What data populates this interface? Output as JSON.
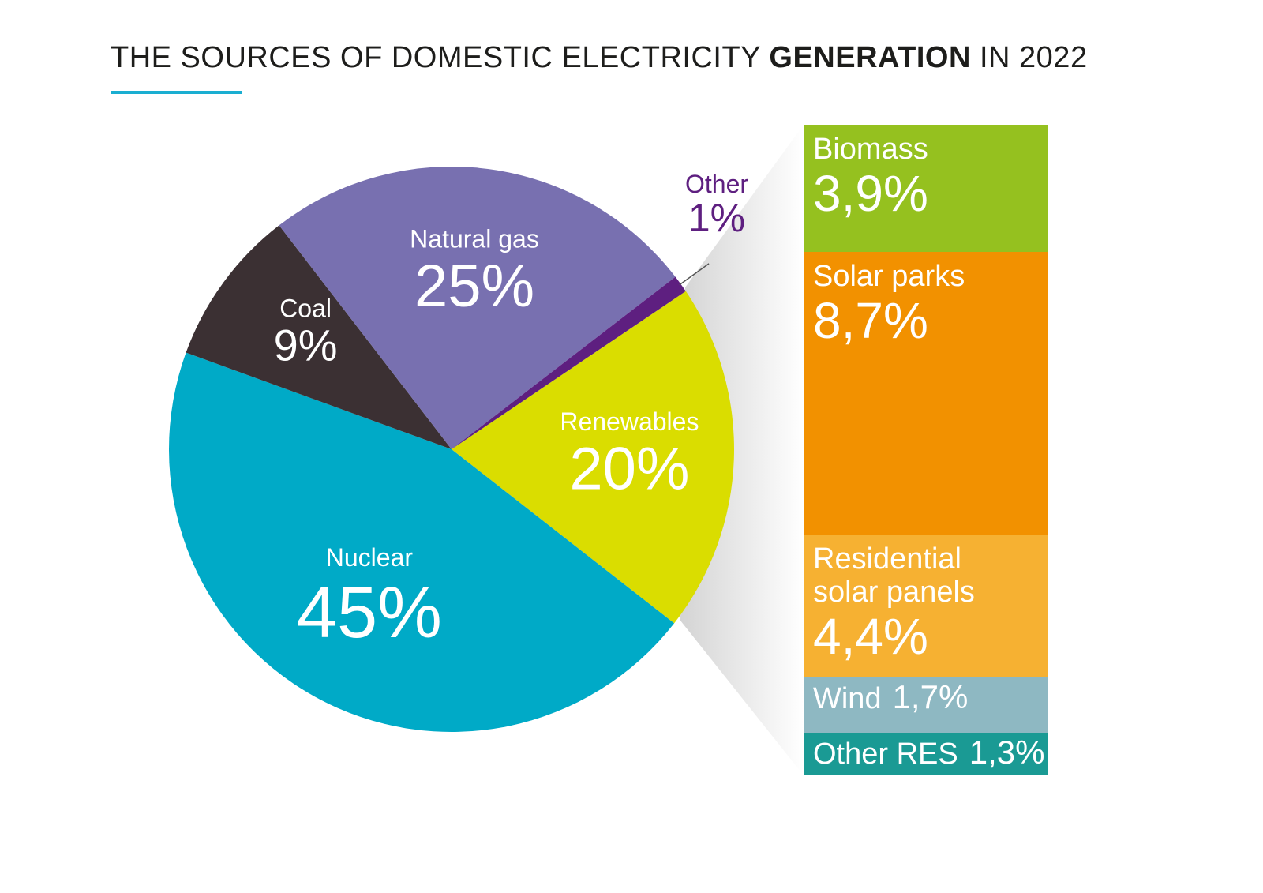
{
  "title": {
    "prefix": "THE SOURCES OF DOMESTIC ELECTRICITY ",
    "bold": "GENERATION",
    "suffix": " IN 2022",
    "underline_color": "#1aaed1"
  },
  "chart_data": [
    {
      "type": "pie",
      "unit": "%",
      "slices": [
        {
          "label": "Renewables",
          "value": 20,
          "value_label": "20%",
          "color": "#dadd00",
          "text_color": "#ffffff"
        },
        {
          "label": "Nuclear",
          "value": 45,
          "value_label": "45%",
          "color": "#00aac7",
          "text_color": "#ffffff"
        },
        {
          "label": "Coal",
          "value": 9,
          "value_label": "9%",
          "color": "#3b3033",
          "text_color": "#ffffff"
        },
        {
          "label": "Natural gas",
          "value": 25,
          "value_label": "25%",
          "color": "#7870b0",
          "text_color": "#ffffff"
        },
        {
          "label": "Other",
          "value": 1,
          "value_label": "1%",
          "color": "#5e1f80",
          "text_color": "#5e1f80"
        }
      ]
    },
    {
      "type": "bar",
      "stacked": true,
      "breakdown_of": "Renewables",
      "unit": "%",
      "segments": [
        {
          "label": "Biomass",
          "value": 3.9,
          "value_label": "3,9%",
          "color": "#95c11f"
        },
        {
          "label": "Solar parks",
          "value": 8.7,
          "value_label": "8,7%",
          "color": "#f29100"
        },
        {
          "label": "Residential solar panels",
          "value": 4.4,
          "value_label": "4,4%",
          "color": "#f6b132"
        },
        {
          "label": "Wind",
          "value": 1.7,
          "value_label": "1,7%",
          "color": "#8eb8c2"
        },
        {
          "label": "Other RES",
          "value": 1.3,
          "value_label": "1,3%",
          "color": "#1a9a94"
        }
      ]
    }
  ]
}
